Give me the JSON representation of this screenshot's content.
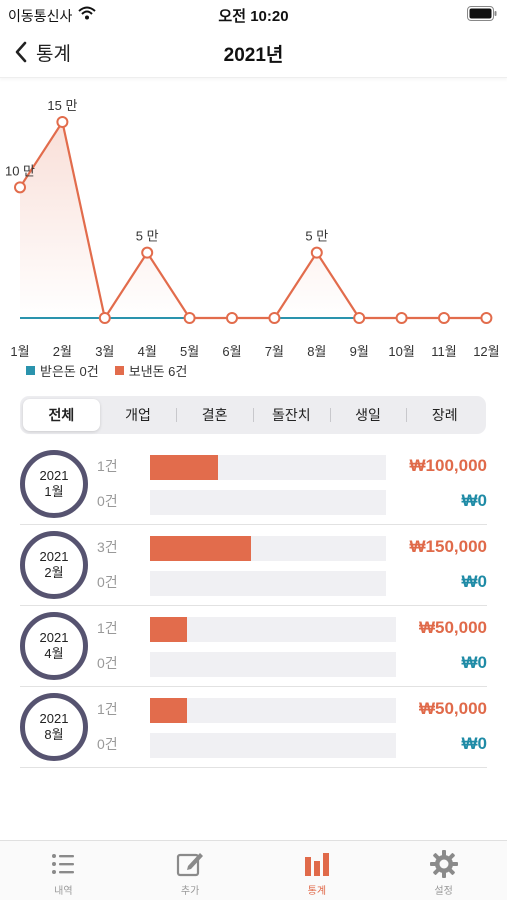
{
  "status_bar": {
    "carrier": "이동통신사",
    "time": "오전 10:20"
  },
  "nav": {
    "back_label": "통계",
    "title": "2021년"
  },
  "colors": {
    "sent": "#e26c4c",
    "received": "#2a93ad",
    "circle_border": "#565370",
    "accent": "#e06a4a"
  },
  "chart_data": {
    "type": "line",
    "categories": [
      "1월",
      "2월",
      "3월",
      "4월",
      "5월",
      "6월",
      "7월",
      "8월",
      "9월",
      "10월",
      "11월",
      "12월"
    ],
    "series": [
      {
        "name": "받은돈 0건",
        "values": [
          0,
          0,
          0,
          0,
          0,
          0,
          0,
          0,
          0,
          0,
          0,
          0
        ]
      },
      {
        "name": "보낸돈 6건",
        "values": [
          100000,
          150000,
          0,
          50000,
          0,
          0,
          0,
          50000,
          0,
          0,
          0,
          0
        ]
      }
    ],
    "data_labels": [
      {
        "month_index": 0,
        "text": "10 만"
      },
      {
        "month_index": 1,
        "text": "15 만"
      },
      {
        "month_index": 3,
        "text": "5 만"
      },
      {
        "month_index": 7,
        "text": "5 만"
      }
    ],
    "ylim": [
      0,
      150000
    ],
    "legend_position": "bottom-left",
    "grid": false
  },
  "legend": {
    "received": "받은돈 0건",
    "sent": "보낸돈 6건"
  },
  "segments": [
    "전체",
    "개업",
    "결혼",
    "돌잔치",
    "생일",
    "장례"
  ],
  "active_segment": "전체",
  "months": [
    {
      "year": "2021",
      "month": "1월",
      "sent_count": "1건",
      "received_count": "0건",
      "sent_amount": "₩100,000",
      "received_amount": "₩0",
      "sent_fill": 0.29
    },
    {
      "year": "2021",
      "month": "2월",
      "sent_count": "3건",
      "received_count": "0건",
      "sent_amount": "₩150,000",
      "received_amount": "₩0",
      "sent_fill": 0.43
    },
    {
      "year": "2021",
      "month": "4월",
      "sent_count": "1건",
      "received_count": "0건",
      "sent_amount": "₩50,000",
      "received_amount": "₩0",
      "sent_fill": 0.15
    },
    {
      "year": "2021",
      "month": "8월",
      "sent_count": "1건",
      "received_count": "0건",
      "sent_amount": "₩50,000",
      "received_amount": "₩0",
      "sent_fill": 0.15
    }
  ],
  "tabs": [
    {
      "label": "내역",
      "icon": "list-icon"
    },
    {
      "label": "추가",
      "icon": "edit-icon"
    },
    {
      "label": "통계",
      "icon": "bar-chart-icon"
    },
    {
      "label": "설정",
      "icon": "gear-icon"
    }
  ],
  "active_tab": "통계"
}
